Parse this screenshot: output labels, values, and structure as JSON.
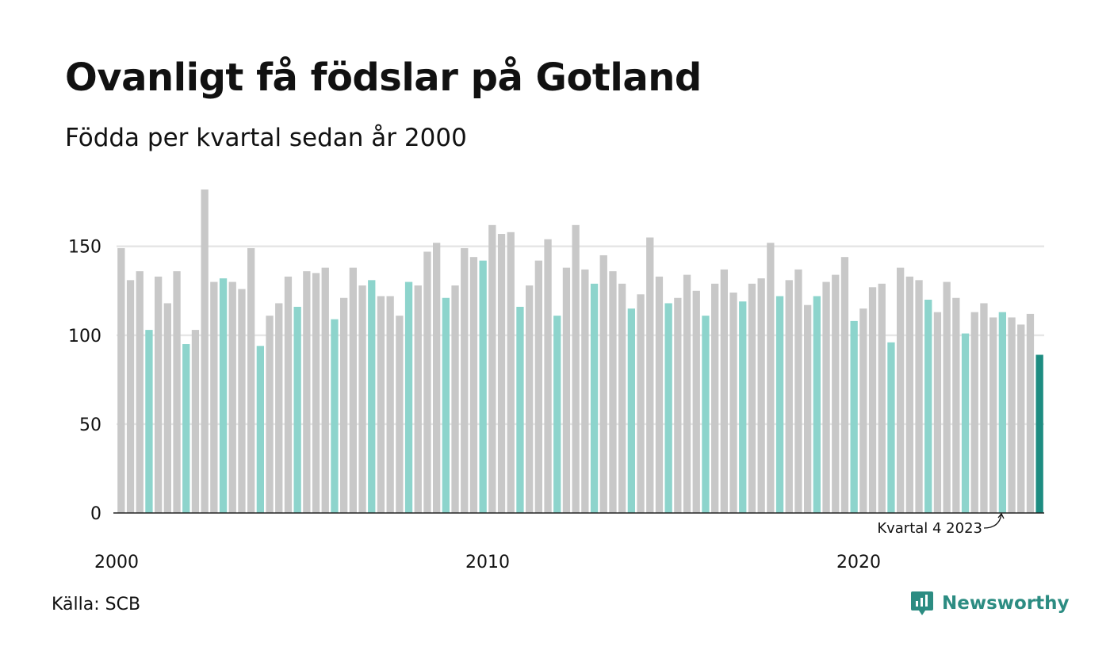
{
  "title": "Ovanligt få födslar på Gotland",
  "subtitle": "Födda per kvartal sedan år 2000",
  "source": "Källa: SCB",
  "brand": "Newsworthy",
  "chart_data": {
    "type": "bar",
    "ylim": [
      0,
      182
    ],
    "yticks": [
      0,
      50,
      100,
      150
    ],
    "xtick_labels": [
      "2000",
      "2010",
      "2020"
    ],
    "grid": true,
    "highlight_quarter": 1,
    "colors": {
      "default": "#c8c8c8",
      "highlight": "#8dd4cc",
      "latest": "#1d8c81",
      "grid": "#e6e6e6",
      "axis": "#222222"
    },
    "annotation": "Kvartal 4 2023",
    "values": [
      149,
      131,
      136,
      103,
      133,
      118,
      136,
      95,
      103,
      182,
      130,
      132,
      130,
      126,
      149,
      94,
      111,
      118,
      133,
      116,
      136,
      135,
      138,
      109,
      121,
      138,
      128,
      131,
      122,
      122,
      111,
      130,
      128,
      147,
      152,
      121,
      128,
      149,
      144,
      142,
      162,
      157,
      158,
      116,
      128,
      142,
      154,
      111,
      138,
      162,
      137,
      129,
      145,
      136,
      129,
      115,
      123,
      155,
      133,
      118,
      121,
      134,
      125,
      111,
      129,
      137,
      124,
      119,
      129,
      132,
      152,
      122,
      131,
      137,
      117,
      122,
      130,
      134,
      144,
      108,
      115,
      127,
      129,
      96,
      138,
      133,
      131,
      120,
      113,
      130,
      121,
      101,
      113,
      118,
      110,
      113,
      110,
      106,
      112,
      89
    ]
  }
}
